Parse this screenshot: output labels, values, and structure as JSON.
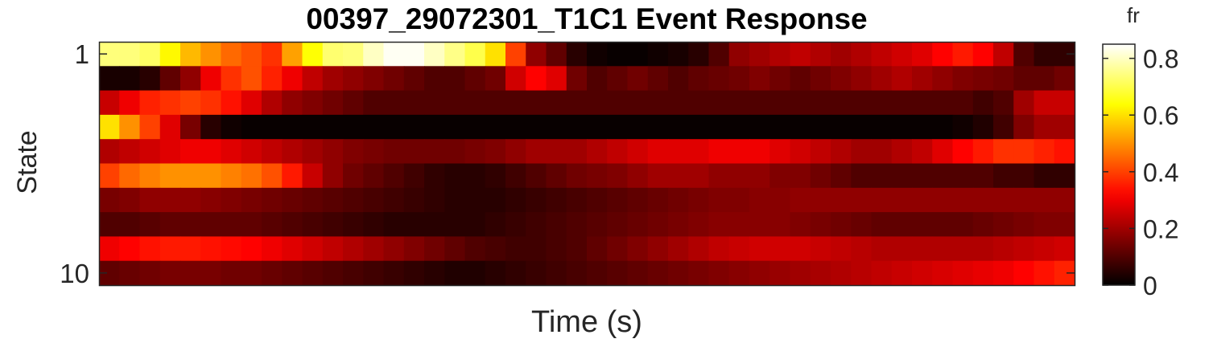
{
  "chart_data": {
    "type": "heatmap",
    "title": "00397_29072301_T1C1 Event Response",
    "xlabel": "Time (s)",
    "ylabel": "State",
    "y_ticks": [
      "1",
      "10"
    ],
    "colorbar": {
      "label": "fr",
      "range": [
        0,
        0.85
      ],
      "ticks": [
        "0",
        "0.2",
        "0.4",
        "0.6",
        "0.8"
      ],
      "colormap": "hot"
    },
    "rows": 10,
    "cols": 48,
    "values": [
      [
        0.74,
        0.74,
        0.72,
        0.63,
        0.55,
        0.5,
        0.45,
        0.42,
        0.38,
        0.52,
        0.64,
        0.73,
        0.74,
        0.8,
        0.84,
        0.84,
        0.8,
        0.75,
        0.7,
        0.6,
        0.4,
        0.18,
        0.12,
        0.05,
        0.02,
        0.01,
        0.01,
        0.02,
        0.03,
        0.05,
        0.1,
        0.18,
        0.2,
        0.22,
        0.24,
        0.22,
        0.2,
        0.22,
        0.24,
        0.26,
        0.28,
        0.32,
        0.35,
        0.32,
        0.24,
        0.1,
        0.06,
        0.06
      ],
      [
        0.03,
        0.03,
        0.05,
        0.12,
        0.18,
        0.3,
        0.38,
        0.42,
        0.36,
        0.3,
        0.24,
        0.2,
        0.18,
        0.16,
        0.14,
        0.12,
        0.1,
        0.1,
        0.12,
        0.14,
        0.26,
        0.32,
        0.28,
        0.14,
        0.1,
        0.12,
        0.14,
        0.12,
        0.1,
        0.12,
        0.13,
        0.14,
        0.16,
        0.14,
        0.12,
        0.14,
        0.16,
        0.18,
        0.2,
        0.22,
        0.2,
        0.18,
        0.16,
        0.15,
        0.14,
        0.12,
        0.12,
        0.14
      ],
      [
        0.25,
        0.3,
        0.36,
        0.38,
        0.4,
        0.38,
        0.34,
        0.28,
        0.22,
        0.18,
        0.16,
        0.14,
        0.12,
        0.1,
        0.1,
        0.1,
        0.1,
        0.1,
        0.1,
        0.1,
        0.1,
        0.1,
        0.1,
        0.1,
        0.1,
        0.1,
        0.1,
        0.1,
        0.1,
        0.1,
        0.1,
        0.1,
        0.1,
        0.1,
        0.1,
        0.1,
        0.1,
        0.1,
        0.1,
        0.1,
        0.1,
        0.1,
        0.1,
        0.08,
        0.1,
        0.2,
        0.25,
        0.25
      ],
      [
        0.6,
        0.5,
        0.4,
        0.28,
        0.15,
        0.05,
        0.02,
        0.01,
        0.01,
        0.01,
        0.01,
        0.01,
        0.01,
        0.01,
        0.01,
        0.01,
        0.01,
        0.01,
        0.01,
        0.01,
        0.01,
        0.01,
        0.01,
        0.01,
        0.01,
        0.01,
        0.01,
        0.01,
        0.01,
        0.01,
        0.01,
        0.01,
        0.01,
        0.01,
        0.01,
        0.01,
        0.01,
        0.01,
        0.01,
        0.01,
        0.01,
        0.01,
        0.02,
        0.04,
        0.08,
        0.16,
        0.2,
        0.2
      ],
      [
        0.22,
        0.24,
        0.26,
        0.28,
        0.3,
        0.3,
        0.28,
        0.26,
        0.24,
        0.22,
        0.2,
        0.18,
        0.16,
        0.15,
        0.14,
        0.14,
        0.14,
        0.14,
        0.15,
        0.16,
        0.18,
        0.2,
        0.2,
        0.2,
        0.22,
        0.24,
        0.26,
        0.28,
        0.28,
        0.28,
        0.3,
        0.3,
        0.3,
        0.28,
        0.26,
        0.24,
        0.22,
        0.2,
        0.2,
        0.22,
        0.24,
        0.28,
        0.32,
        0.35,
        0.38,
        0.38,
        0.36,
        0.34
      ],
      [
        0.4,
        0.45,
        0.48,
        0.5,
        0.5,
        0.5,
        0.48,
        0.46,
        0.42,
        0.35,
        0.25,
        0.18,
        0.14,
        0.12,
        0.1,
        0.08,
        0.06,
        0.05,
        0.05,
        0.06,
        0.08,
        0.1,
        0.12,
        0.14,
        0.15,
        0.16,
        0.18,
        0.2,
        0.2,
        0.2,
        0.18,
        0.18,
        0.18,
        0.16,
        0.16,
        0.14,
        0.12,
        0.1,
        0.1,
        0.1,
        0.1,
        0.1,
        0.1,
        0.1,
        0.08,
        0.08,
        0.06,
        0.06
      ],
      [
        0.15,
        0.16,
        0.18,
        0.18,
        0.18,
        0.17,
        0.16,
        0.15,
        0.14,
        0.13,
        0.12,
        0.11,
        0.1,
        0.09,
        0.08,
        0.07,
        0.06,
        0.05,
        0.05,
        0.05,
        0.06,
        0.07,
        0.08,
        0.09,
        0.1,
        0.11,
        0.12,
        0.13,
        0.14,
        0.15,
        0.16,
        0.16,
        0.17,
        0.17,
        0.18,
        0.18,
        0.18,
        0.18,
        0.18,
        0.18,
        0.18,
        0.18,
        0.18,
        0.18,
        0.18,
        0.18,
        0.18,
        0.18
      ],
      [
        0.1,
        0.1,
        0.11,
        0.12,
        0.12,
        0.12,
        0.12,
        0.12,
        0.11,
        0.1,
        0.09,
        0.08,
        0.07,
        0.06,
        0.05,
        0.05,
        0.05,
        0.05,
        0.05,
        0.06,
        0.07,
        0.08,
        0.09,
        0.1,
        0.11,
        0.12,
        0.13,
        0.14,
        0.15,
        0.16,
        0.17,
        0.17,
        0.17,
        0.17,
        0.16,
        0.15,
        0.14,
        0.13,
        0.12,
        0.12,
        0.12,
        0.12,
        0.12,
        0.13,
        0.14,
        0.15,
        0.16,
        0.16
      ],
      [
        0.3,
        0.32,
        0.34,
        0.35,
        0.35,
        0.34,
        0.33,
        0.32,
        0.3,
        0.28,
        0.26,
        0.24,
        0.22,
        0.2,
        0.18,
        0.16,
        0.14,
        0.12,
        0.1,
        0.09,
        0.08,
        0.08,
        0.09,
        0.1,
        0.12,
        0.14,
        0.16,
        0.18,
        0.2,
        0.22,
        0.24,
        0.25,
        0.26,
        0.26,
        0.26,
        0.25,
        0.24,
        0.23,
        0.22,
        0.22,
        0.22,
        0.22,
        0.22,
        0.22,
        0.23,
        0.24,
        0.25,
        0.26
      ],
      [
        0.12,
        0.13,
        0.14,
        0.15,
        0.15,
        0.15,
        0.14,
        0.14,
        0.13,
        0.12,
        0.11,
        0.1,
        0.09,
        0.08,
        0.07,
        0.06,
        0.05,
        0.04,
        0.04,
        0.05,
        0.06,
        0.07,
        0.08,
        0.09,
        0.1,
        0.11,
        0.12,
        0.13,
        0.14,
        0.15,
        0.16,
        0.17,
        0.18,
        0.19,
        0.2,
        0.21,
        0.22,
        0.23,
        0.24,
        0.25,
        0.26,
        0.27,
        0.28,
        0.29,
        0.3,
        0.32,
        0.34,
        0.36
      ]
    ]
  }
}
